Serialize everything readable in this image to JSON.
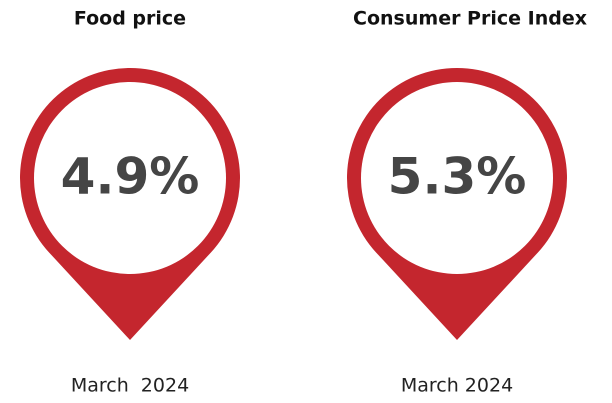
{
  "cards": [
    {
      "title": "Food price",
      "value": "4.9%",
      "date": "March  2024"
    },
    {
      "title": "Consumer Price Index",
      "value": "5.3%",
      "date": "March 2024"
    }
  ]
}
